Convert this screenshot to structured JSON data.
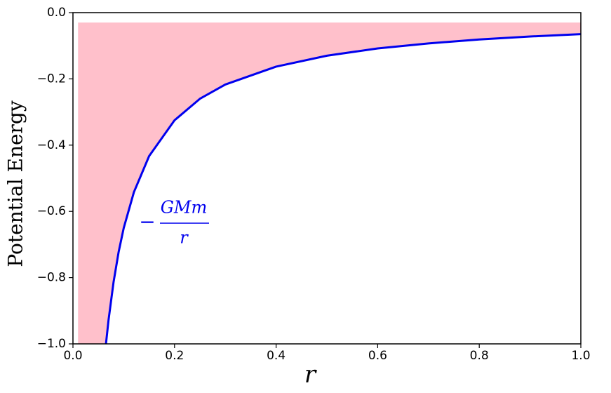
{
  "chart_data": {
    "type": "line",
    "x": [
      0.065,
      0.07,
      0.08,
      0.09,
      0.1,
      0.12,
      0.15,
      0.2,
      0.25,
      0.3,
      0.4,
      0.5,
      0.6,
      0.7,
      0.8,
      0.9,
      1.0
    ],
    "series": [
      {
        "color": "#0000ee",
        "values": [
          -1.0,
          -0.929,
          -0.813,
          -0.722,
          -0.65,
          -0.542,
          -0.433,
          -0.325,
          -0.26,
          -0.217,
          -0.163,
          -0.13,
          -0.108,
          -0.093,
          -0.081,
          -0.072,
          -0.065
        ]
      }
    ],
    "fill": {
      "color": "#ffc0cb",
      "xstart": 0.01,
      "top": -0.03
    },
    "xlim": [
      0,
      1
    ],
    "ylim": [
      -1,
      0
    ],
    "xticks": [
      {
        "value": 0,
        "label": "0.0"
      },
      {
        "value": 0.2,
        "label": "0.2"
      },
      {
        "value": 0.4,
        "label": "0.4"
      },
      {
        "value": 0.6,
        "label": "0.6"
      },
      {
        "value": 0.8,
        "label": "0.8"
      },
      {
        "value": 1,
        "label": "1.0"
      }
    ],
    "yticks": [
      {
        "value": 0,
        "label": "0.0"
      },
      {
        "value": -0.2,
        "label": "−0.2"
      },
      {
        "value": -0.4,
        "label": "−0.4"
      },
      {
        "value": -0.6,
        "label": "−0.6"
      },
      {
        "value": -0.8,
        "label": "−0.8"
      },
      {
        "value": -1,
        "label": "−1.0"
      }
    ],
    "xlabel": "r",
    "ylabel": "Potential Energy",
    "annotation": {
      "sign": "−",
      "numerator": "GMm",
      "denominator": "r"
    }
  }
}
